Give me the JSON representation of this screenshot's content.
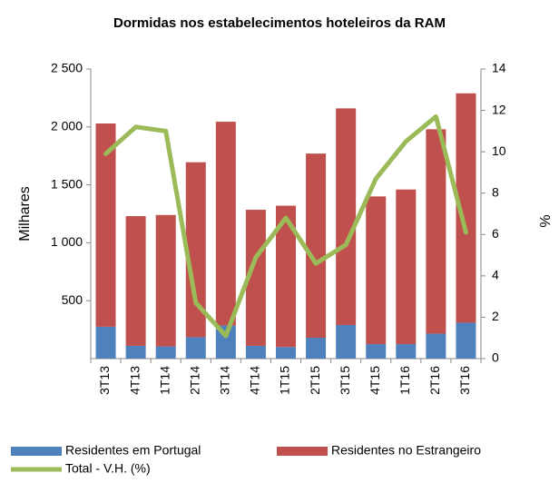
{
  "chart_data": {
    "type": "bar",
    "title": "Dormidas nos estabelecimentos hoteleiros da RAM",
    "y_label": "Milhares",
    "y2_label": "%",
    "categories": [
      "3T13",
      "4T13",
      "1T14",
      "2T14",
      "3T14",
      "4T14",
      "1T15",
      "2T15",
      "3T15",
      "4T15",
      "1T16",
      "2T16",
      "3T16"
    ],
    "stacked": true,
    "series": [
      {
        "name": "Residentes em Portugal",
        "type": "bar",
        "color": "#4f81bd",
        "values": [
          275,
          110,
          105,
          185,
          285,
          110,
          100,
          180,
          290,
          125,
          125,
          215,
          310
        ]
      },
      {
        "name": "Residentes no Estrangeiro",
        "type": "bar",
        "color": "#c0504d",
        "values": [
          1755,
          1120,
          1135,
          1510,
          1760,
          1175,
          1220,
          1590,
          1870,
          1275,
          1335,
          1765,
          1980
        ]
      },
      {
        "name": "Total - V.H. (%)",
        "type": "line",
        "axis": "y2",
        "color": "#9bbb59",
        "values": [
          9.9,
          11.2,
          11.0,
          2.7,
          1.1,
          4.9,
          6.8,
          4.6,
          5.5,
          8.7,
          10.5,
          11.7,
          6.1
        ]
      }
    ],
    "ylim": [
      0,
      2500
    ],
    "yticks": [
      500,
      {
        "value": 1000,
        "label": "1 000"
      },
      {
        "value": 1500,
        "label": "1 500"
      },
      {
        "value": 2000,
        "label": "2 000"
      },
      {
        "value": 2500,
        "label": "2 500"
      }
    ],
    "y2lim": [
      0,
      14
    ],
    "y2ticks": [
      0,
      2,
      4,
      6,
      8,
      10,
      12,
      14
    ],
    "grid": false,
    "legend": "bottom"
  }
}
